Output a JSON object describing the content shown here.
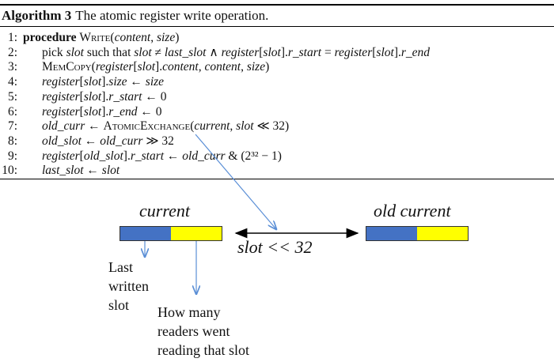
{
  "algorithm": {
    "number_label": "Algorithm 3",
    "caption": "The atomic register write operation.",
    "lines": [
      {
        "num": "1:",
        "text": "procedure WRITE(content, size)"
      },
      {
        "num": "2:",
        "text": "pick slot such that slot ≠ last_slot ∧ register[slot].r_start = register[slot].r_end"
      },
      {
        "num": "3:",
        "text": "MEMCOPY(register[slot].content, content, size)"
      },
      {
        "num": "4:",
        "text": "register[slot].size ← size"
      },
      {
        "num": "5:",
        "text": "register[slot].r_start ← 0"
      },
      {
        "num": "6:",
        "text": "register[slot].r_end ← 0"
      },
      {
        "num": "7:",
        "text": "old_curr ← ATOMICEXCHANGE(current, slot ≪ 32)"
      },
      {
        "num": "8:",
        "text": "old_slot ← old_curr ≫ 32"
      },
      {
        "num": "9:",
        "text": "register[old_slot].r_start ← old_curr & (2³² − 1)"
      },
      {
        "num": "10:",
        "text": "last_slot ← slot"
      }
    ]
  },
  "diagram": {
    "current_label": "current",
    "old_current_label": "old current",
    "shift_label": "slot << 32",
    "last_written_lines": [
      "Last",
      "written",
      "slot"
    ],
    "readers_lines": [
      "How many",
      "readers went",
      "reading that slot"
    ]
  },
  "colors": {
    "blue": "#4472c4",
    "yellow": "#ffff00",
    "arrow_blue": "#5b8fd6"
  }
}
